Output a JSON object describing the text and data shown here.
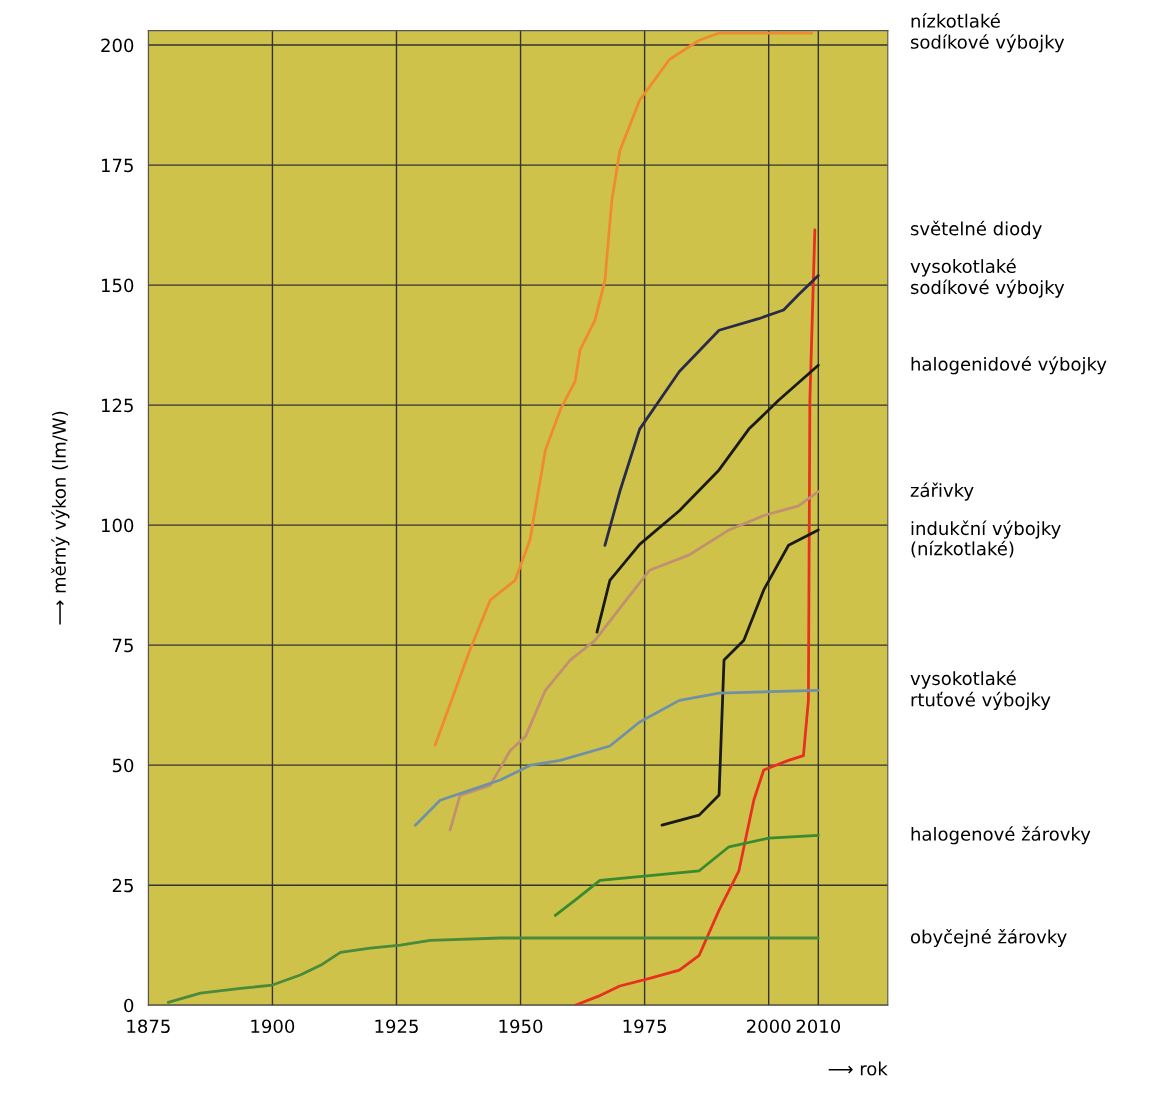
{
  "chart_data": {
    "type": "line",
    "ylabel": "⟶ měrný výkon (lm/W)",
    "xlabel": "⟶ rok",
    "xlim": [
      1875,
      2024
    ],
    "ylim": [
      0,
      203
    ],
    "xticks": [
      1875,
      1900,
      1925,
      1950,
      1975,
      2000,
      2010
    ],
    "yticks": [
      0,
      25,
      50,
      75,
      100,
      125,
      150,
      175,
      200
    ],
    "grid": true,
    "legend": false,
    "marker": "none",
    "line_style": "solid",
    "series": [
      {
        "name": "nízkotlaké\nsodíkové výbojky",
        "color": "#f08a30",
        "x": [
          1932.8,
          1939.8,
          1943.9,
          1948.9,
          1951.9,
          1955,
          1958,
          1961,
          1962,
          1965,
          1967,
          1968.4,
          1970,
          1974,
          1980,
          1986,
          1990,
          2008.7
        ],
        "values": [
          54.2,
          74,
          84.4,
          88.5,
          96.9,
          115.6,
          124,
          130,
          136.5,
          142.7,
          151,
          167.7,
          178,
          188.5,
          197,
          201,
          202.5,
          202.5
        ]
      },
      {
        "name": "světelné diody",
        "color": "#e83020",
        "x": [
          1961,
          1966,
          1970,
          1976,
          1982,
          1986,
          1990,
          1994,
          1997,
          1999,
          2004,
          2007,
          2008,
          2008.3,
          2009.3
        ],
        "values": [
          0,
          2,
          4,
          5.6,
          7.3,
          10.4,
          19.8,
          28,
          42.7,
          49,
          51,
          52,
          63.5,
          126,
          161.5
        ]
      },
      {
        "name": "vysokotlaké\nsodíkové výbojky",
        "color": "#2a2a4a",
        "x": [
          1967,
          1970,
          1974,
          1982,
          1990,
          1998,
          2003,
          2006,
          2010
        ],
        "values": [
          95.8,
          107,
          120,
          132,
          140.6,
          143,
          144.8,
          148,
          152
        ]
      },
      {
        "name": "halogenidové výbojky",
        "color": "#1a1a1a",
        "x": [
          1965.4,
          1968,
          1974,
          1982,
          1990,
          1996,
          2002,
          2010
        ],
        "values": [
          77.7,
          88.5,
          96,
          103,
          111.5,
          120,
          126,
          133.3
        ]
      },
      {
        "name": "zářivky",
        "color": "#c09070",
        "x": [
          1935.8,
          1937.8,
          1943.9,
          1947.9,
          1951,
          1955,
          1960,
          1965,
          1971,
          1976,
          1984,
          1992,
          1999,
          2006,
          2010
        ],
        "values": [
          36.5,
          43.7,
          45.8,
          53,
          56,
          65.6,
          71.9,
          76,
          84,
          90.6,
          93.8,
          99,
          102,
          104,
          107
        ]
      },
      {
        "name": "indukční výbojky\n(nízkotlaké)",
        "color": "#1a1a1a",
        "x": [
          1978.5,
          1986,
          1990,
          1991,
          1995,
          1999,
          2004,
          2010
        ],
        "values": [
          37.5,
          39.6,
          43.8,
          71.9,
          76,
          86.5,
          95.8,
          99
        ]
      },
      {
        "name": "vysokotlaké\nrtuťové výbojky",
        "color": "#7090a8",
        "x": [
          1928.8,
          1933.8,
          1945.9,
          1952,
          1958,
          1968,
          1974,
          1982,
          1990,
          2010
        ],
        "values": [
          37.5,
          42.7,
          46.9,
          50,
          51,
          54,
          59,
          63.5,
          65,
          65.6
        ]
      },
      {
        "name": "halogenové žárovky",
        "color": "#3a8a30",
        "x": [
          1957,
          1961,
          1966,
          1976,
          1986,
          1992,
          2000,
          2010
        ],
        "values": [
          18.7,
          21.9,
          26,
          27,
          28,
          33,
          34.8,
          35.4
        ]
      },
      {
        "name": "obyčejné žárovky",
        "color": "#4a8a3a",
        "x": [
          1879,
          1885.5,
          1893.6,
          1900,
          1905.6,
          1909.7,
          1913.7,
          1919.7,
          1925.8,
          1931.8,
          1945.9,
          2010
        ],
        "values": [
          0.6,
          2.5,
          3.5,
          4.2,
          6.3,
          8.3,
          11,
          11.9,
          12.5,
          13.5,
          14,
          14
        ]
      }
    ]
  }
}
